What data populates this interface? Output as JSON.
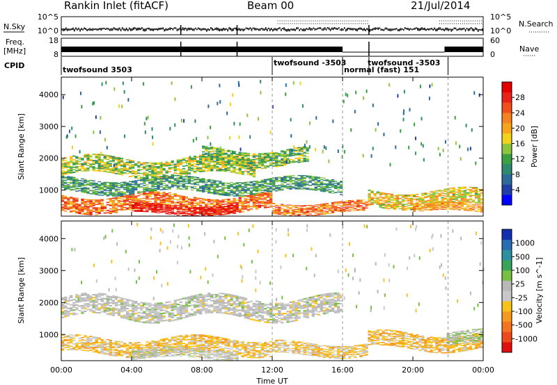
{
  "header": {
    "title": "Rankin Inlet (fitACF)",
    "beam": "Beam 00",
    "date": "21/Jul/2014"
  },
  "nsky_panel": {
    "left_label": "N.Sky",
    "right_label": "N.Search",
    "left_ticks": [
      "10^5",
      "10^0"
    ],
    "right_ticks": [
      "10^5",
      "10^0"
    ]
  },
  "freq_panel": {
    "left_label_1": "Freq.",
    "left_label_2": "[MHz]",
    "right_label": "Nave",
    "left_ticks": [
      "18",
      "8"
    ],
    "right_ticks": [
      "60",
      "0"
    ]
  },
  "cpid_panel": {
    "label": "CPID",
    "modes": [
      {
        "name": "twofsound 3503",
        "start_hr": 0,
        "end_hr": 12
      },
      {
        "name": "twofsound -3503",
        "start_hr": 12,
        "end_hr": 16
      },
      {
        "name": "normal (fast) 151",
        "start_hr": 16,
        "end_hr": 17.5
      },
      {
        "name": "twofsound -3503",
        "start_hr": 17.5,
        "end_hr": 22
      },
      {
        "name": "",
        "start_hr": 22,
        "end_hr": 24
      }
    ]
  },
  "colors": {
    "power": [
      "#0000ff",
      "#1f3fa6",
      "#2c6a99",
      "#2d8a6e",
      "#3aa042",
      "#8cc63f",
      "#f2d21b",
      "#f7a41d",
      "#f58220",
      "#f04e1b",
      "#e8231a",
      "#e40000"
    ],
    "velocity": [
      "#1030b0",
      "#2a6db3",
      "#2e8fa0",
      "#3aa35a",
      "#78c043",
      "#b8b8b8",
      "#c8c8c8",
      "#f7c31a",
      "#f59a1e",
      "#f57321",
      "#ec4a1c",
      "#e01010"
    ]
  },
  "chart_data": [
    {
      "type": "heatmap",
      "title": "Power",
      "xlabel": "Time UT",
      "ylabel": "Slant Range [km]",
      "xlim": [
        0,
        24
      ],
      "ylim": [
        180,
        4550
      ],
      "x_ticks": [
        "00:00",
        "04:00",
        "08:00",
        "12:00",
        "16:00",
        "20:00",
        "00:00"
      ],
      "y_ticks": [
        1000,
        2000,
        3000,
        4000
      ],
      "colorbar": {
        "label": "Power [dB]",
        "ticks": [
          "4",
          "8",
          "12",
          "16",
          "20",
          "24",
          "28"
        ],
        "range": [
          0,
          30
        ]
      },
      "bands": [
        {
          "t_start": 0,
          "t_end": 11,
          "range_center": 1750,
          "range_width": 550,
          "value": 14
        },
        {
          "t_start": 8,
          "t_end": 14,
          "range_center": 2050,
          "range_width": 500,
          "value": 13
        },
        {
          "t_start": 0,
          "t_end": 16,
          "range_center": 1150,
          "range_width": 450,
          "value": 10
        },
        {
          "t_start": 0,
          "t_end": 12,
          "range_center": 600,
          "range_width": 500,
          "value": 22
        },
        {
          "t_start": 4,
          "t_end": 10,
          "range_center": 400,
          "range_width": 300,
          "value": 28
        },
        {
          "t_start": 12,
          "t_end": 17.5,
          "range_center": 450,
          "range_width": 350,
          "value": 22
        },
        {
          "t_start": 17.5,
          "t_end": 24,
          "range_center": 750,
          "range_width": 500,
          "value": 17
        },
        {
          "t_start": 20,
          "t_end": 24,
          "range_center": 450,
          "range_width": 250,
          "value": 20
        }
      ]
    },
    {
      "type": "heatmap",
      "title": "Velocity",
      "xlabel": "Time UT",
      "ylabel": "Slant Range [km]",
      "xlim": [
        0,
        24
      ],
      "ylim": [
        180,
        4550
      ],
      "x_ticks": [
        "00:00",
        "04:00",
        "08:00",
        "12:00",
        "16:00",
        "20:00",
        "00:00"
      ],
      "y_ticks": [
        1000,
        2000,
        3000,
        4000
      ],
      "colorbar": {
        "label": "Velocity [m s^-1]",
        "ticks": [
          "1000",
          "500",
          "100",
          "25",
          "-25",
          "-100",
          "-500",
          "-1000"
        ],
        "range": [
          -1250,
          1250
        ]
      },
      "bands": [
        {
          "t_start": 0,
          "t_end": 16,
          "range_center": 1850,
          "range_width": 650,
          "value": 0
        },
        {
          "t_start": 0,
          "t_end": 12,
          "range_center": 650,
          "range_width": 500,
          "value": -300
        },
        {
          "t_start": 4,
          "t_end": 10,
          "range_center": 400,
          "range_width": 300,
          "value": 0
        },
        {
          "t_start": 12,
          "t_end": 17.5,
          "range_center": 550,
          "range_width": 400,
          "value": -250
        },
        {
          "t_start": 17.5,
          "t_end": 24,
          "range_center": 800,
          "range_width": 500,
          "value": -350
        },
        {
          "t_start": 22,
          "t_end": 24,
          "range_center": 900,
          "range_width": 400,
          "value": 120
        }
      ]
    }
  ]
}
